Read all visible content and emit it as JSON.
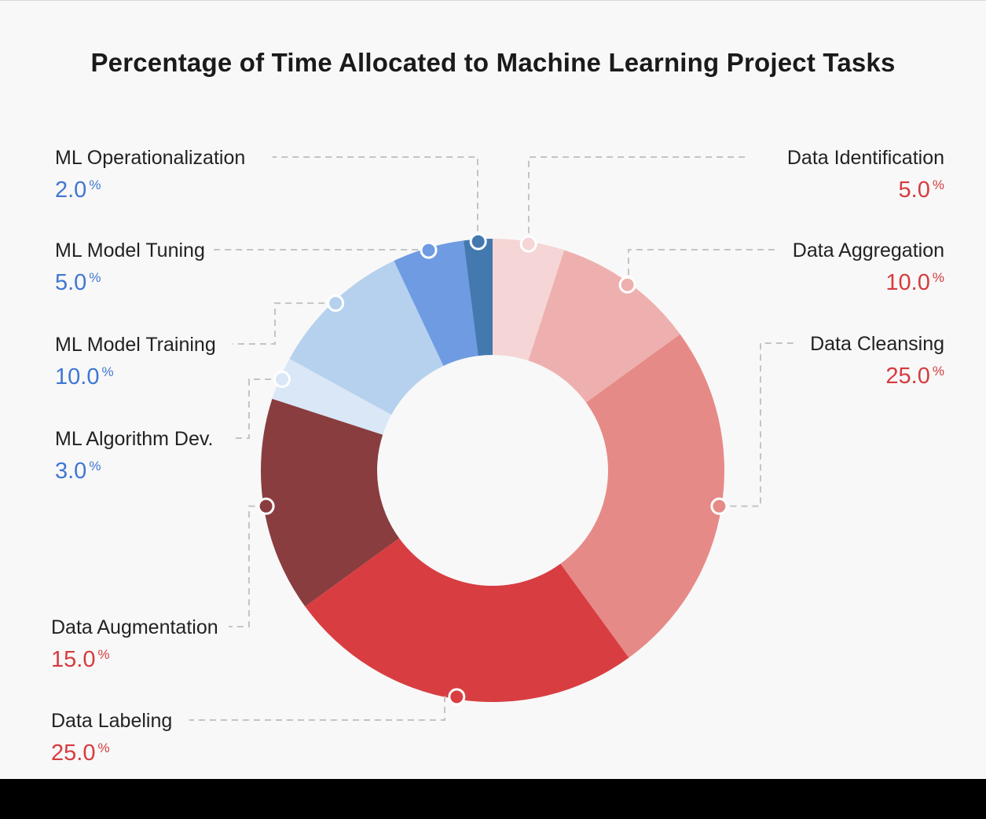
{
  "chart_data": {
    "type": "pie",
    "variant": "donut",
    "title": "Percentage of Time Allocated to Machine Learning Project Tasks",
    "unit_suffix": "%",
    "slices": [
      {
        "label": "Data Identification",
        "value": 5.0,
        "display": "5.0",
        "color": "#f5d5d5",
        "value_color": "#d63b3e"
      },
      {
        "label": "Data Aggregation",
        "value": 10.0,
        "display": "10.0",
        "color": "#eeb0ae",
        "value_color": "#d63b3e"
      },
      {
        "label": "Data Cleansing",
        "value": 25.0,
        "display": "25.0",
        "color": "#e68a88",
        "value_color": "#d63b3e"
      },
      {
        "label": "Data Labeling",
        "value": 25.0,
        "display": "25.0",
        "color": "#d83e41",
        "value_color": "#d63b3e"
      },
      {
        "label": "Data Augmentation",
        "value": 15.0,
        "display": "15.0",
        "color": "#893d3f",
        "value_color": "#d63b3e"
      },
      {
        "label": "ML Algorithm Dev.",
        "value": 3.0,
        "display": "3.0",
        "color": "#d9e7f6",
        "value_color": "#3f77d2"
      },
      {
        "label": "ML Model Training",
        "value": 10.0,
        "display": "10.0",
        "color": "#b5d1ee",
        "value_color": "#3f77d2"
      },
      {
        "label": "ML Model Tuning",
        "value": 5.0,
        "display": "5.0",
        "color": "#6f9be3",
        "value_color": "#3f77d2"
      },
      {
        "label": "ML Operationalization",
        "value": 2.0,
        "display": "2.0",
        "color": "#4379af",
        "value_color": "#3f77d2"
      }
    ]
  }
}
